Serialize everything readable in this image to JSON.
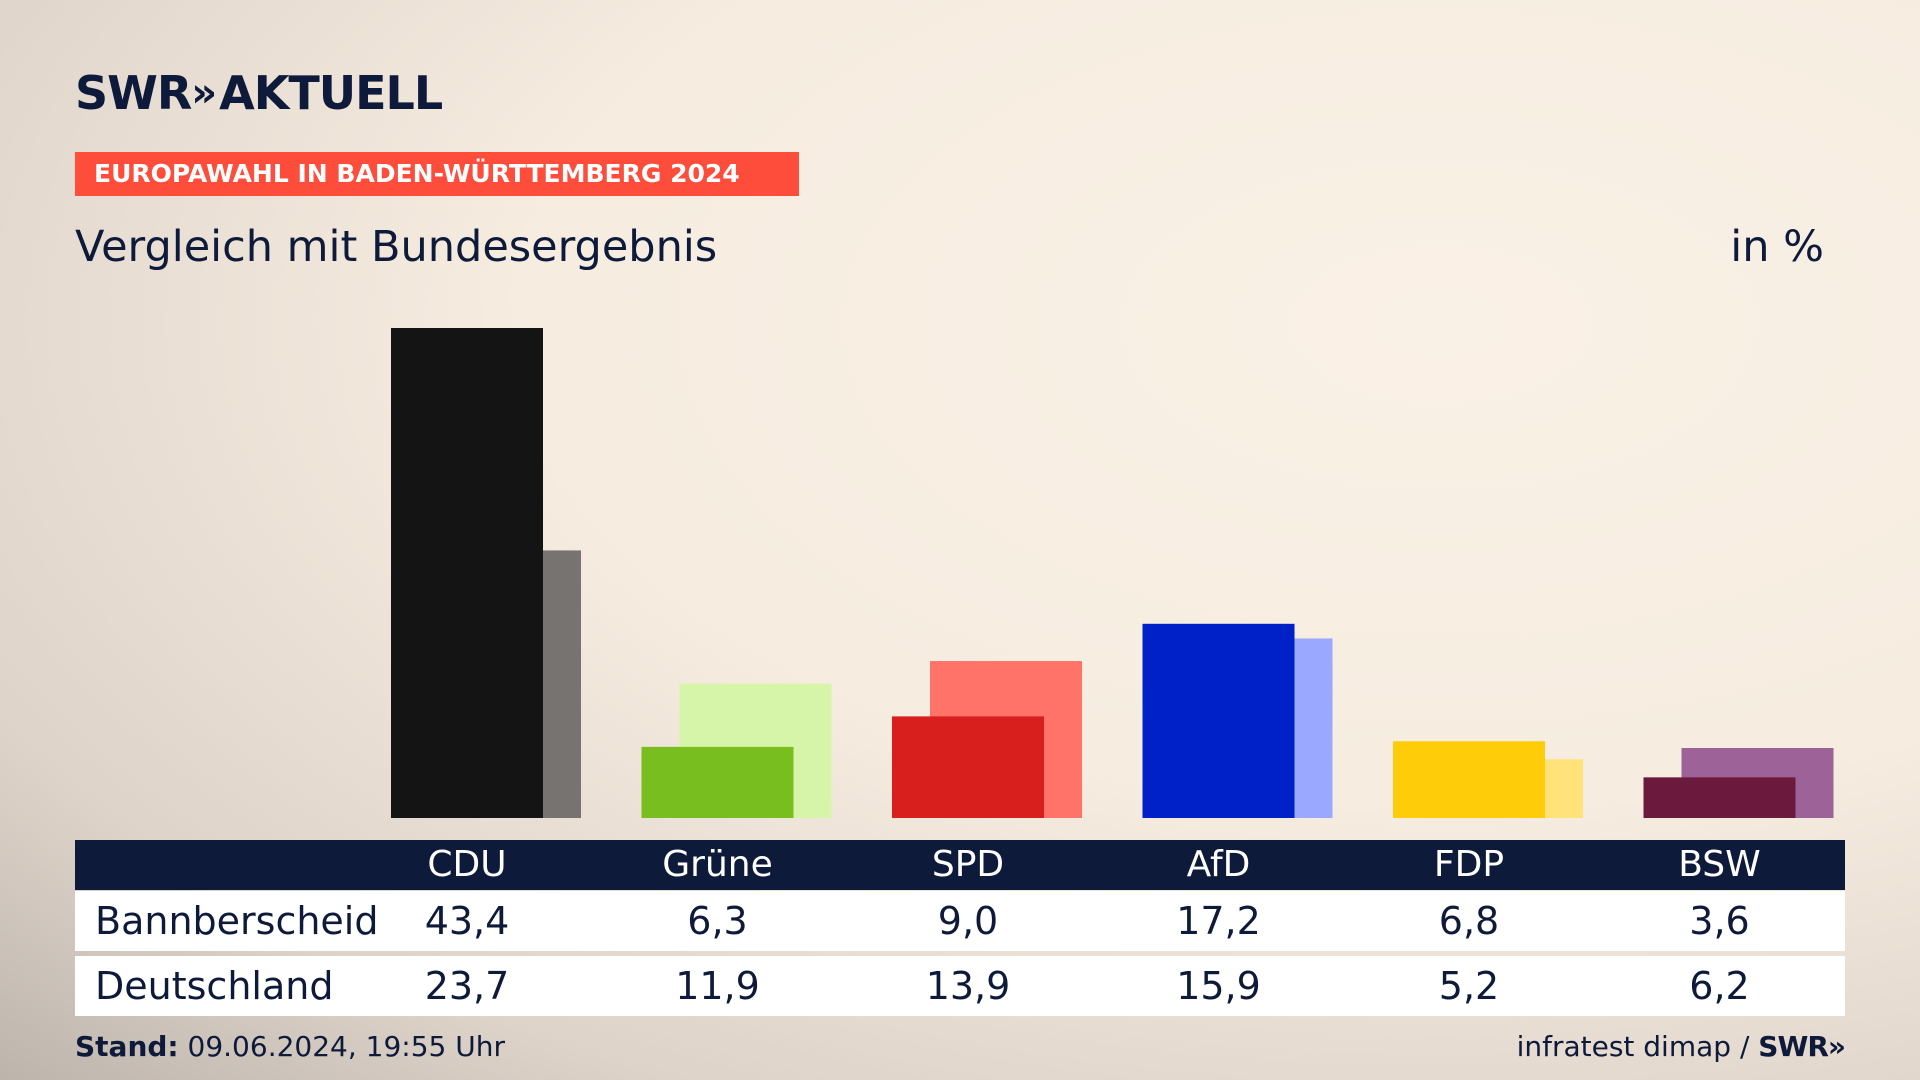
{
  "logo": {
    "brand": "SWR",
    "chevrons": "»",
    "name": "AKTUELL"
  },
  "banner": "EUROPAWAHL IN BADEN-WÜRTTEMBERG 2024",
  "subtitle": "Vergleich mit Bundesergebnis",
  "unit": "in %",
  "footer": {
    "stand_label": "Stand:",
    "stand_value": "09.06.2024, 19:55 Uhr",
    "source": "infratest dimap /",
    "source_logo": "SWR»"
  },
  "chart_data": {
    "type": "bar",
    "title": "Vergleich mit Bundesergebnis",
    "ylabel": "in %",
    "ylim": [
      0,
      43.4
    ],
    "categories": [
      "CDU",
      "Grüne",
      "SPD",
      "AfD",
      "FDP",
      "BSW"
    ],
    "series": [
      {
        "name": "Bannberscheid",
        "values": [
          43.4,
          6.3,
          9.0,
          17.2,
          6.8,
          3.6
        ]
      },
      {
        "name": "Deutschland",
        "values": [
          23.7,
          11.9,
          13.9,
          15.9,
          5.2,
          6.2
        ]
      }
    ],
    "labels_local": [
      "43,4",
      "6,3",
      "9,0",
      "17,2",
      "6,8",
      "3,6"
    ],
    "labels_national": [
      "23,7",
      "11,9",
      "13,9",
      "15,9",
      "5,2",
      "6,2"
    ],
    "colors_local": [
      "#141414",
      "#78be1e",
      "#d91e1e",
      "#0020c8",
      "#ffcc0a",
      "#6b1a3e"
    ],
    "colors_national": [
      "#767371",
      "#d7f5a8",
      "#ff7369",
      "#9aa8ff",
      "#ffe27a",
      "#9d6398"
    ]
  }
}
